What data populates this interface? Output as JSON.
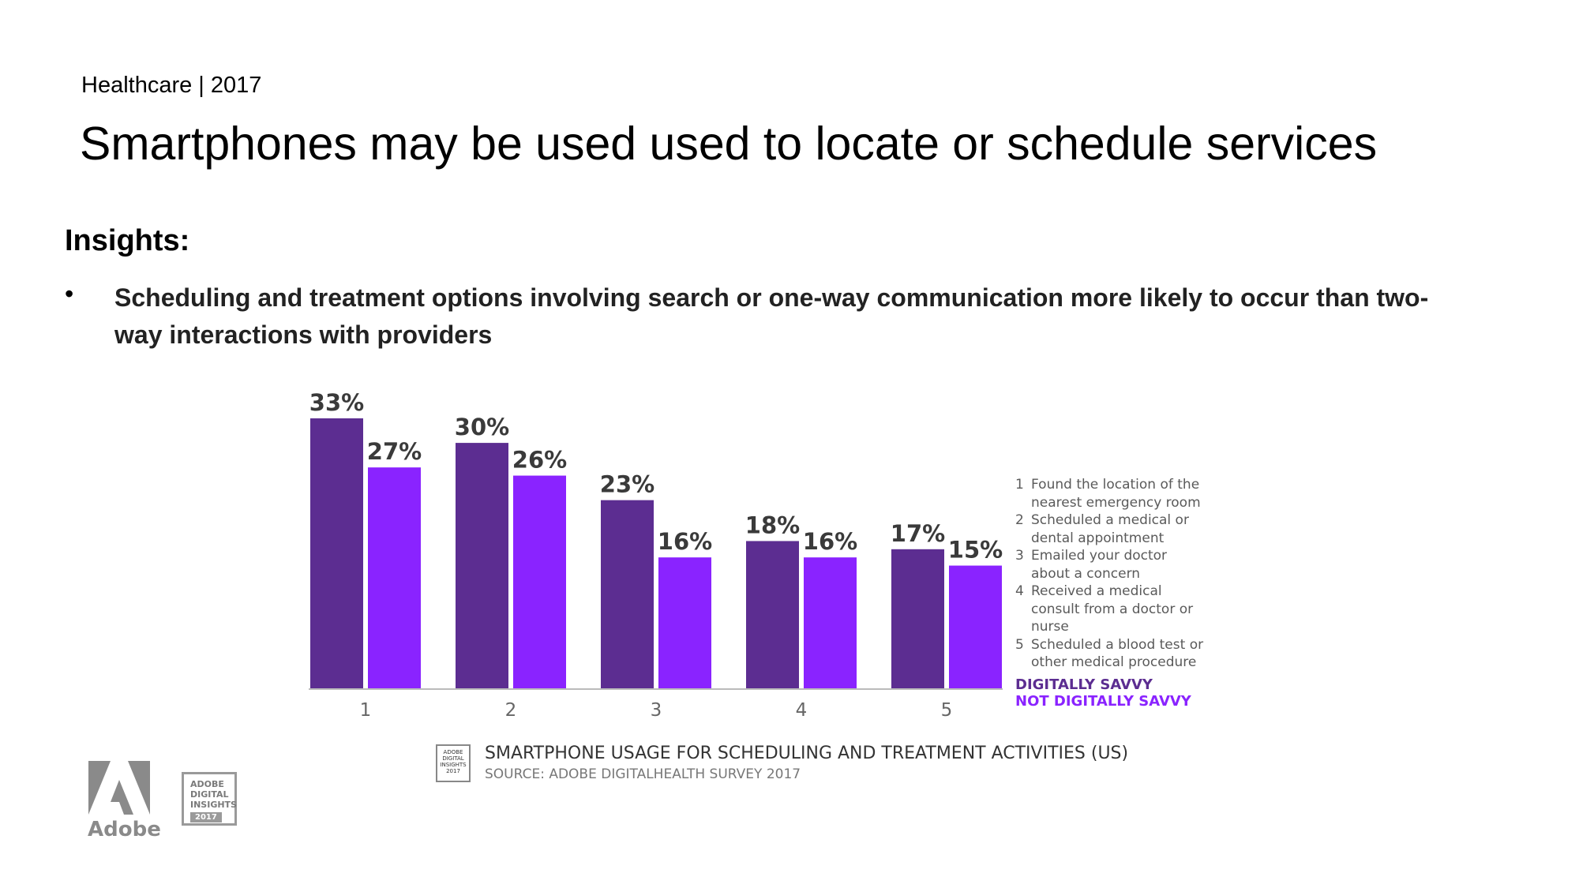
{
  "header": {
    "kicker": "Healthcare | 2017",
    "title": "Smartphones may be used used to locate or schedule services"
  },
  "insights": {
    "heading": "Insights:",
    "bullets": [
      "Scheduling and treatment options involving search or one-way communication more likely to occur than two-way interactions with providers"
    ]
  },
  "chart_data": {
    "type": "bar",
    "categories": [
      "1",
      "2",
      "3",
      "4",
      "5"
    ],
    "series": [
      {
        "name": "DIGITALLY SAVVY",
        "values": [
          33,
          30,
          23,
          18,
          17
        ],
        "labels": [
          "33%",
          "30%",
          "23%",
          "18%",
          "17%"
        ],
        "color": "#5c2d91"
      },
      {
        "name": "NOT DIGITALLY SAVVY",
        "values": [
          27,
          26,
          16,
          16,
          15
        ],
        "labels": [
          "27%",
          "26%",
          "16%",
          "16%",
          "15%"
        ],
        "color": "#8a23ff"
      }
    ],
    "ylim": [
      0,
      33
    ],
    "grid": false,
    "legend_placement": "right",
    "legend": [
      {
        "num": "1",
        "text": "Found the location of the nearest emergency room"
      },
      {
        "num": "2",
        "text": "Scheduled a medical or dental appointment"
      },
      {
        "num": "3",
        "text": "Emailed your doctor about a concern"
      },
      {
        "num": "4",
        "text": "Received a medical consult from a doctor or nurse"
      },
      {
        "num": "5",
        "text": "Scheduled a blood test or other medical procedure"
      }
    ],
    "caption": "SMARTPHONE USAGE FOR SCHEDULING AND TREATMENT ACTIVITIES (US)",
    "source": "SOURCE: ADOBE DIGITALHEALTH SURVEY 2017"
  },
  "badge": {
    "line1": "ADOBE",
    "line2": "DIGITAL",
    "line3": "INSIGHTS",
    "year": "2017"
  },
  "logo": {
    "text": "Adobe"
  },
  "colors": {
    "axis": "#bbbbbb",
    "label": "#3a3a3a",
    "tick": "#666666"
  }
}
